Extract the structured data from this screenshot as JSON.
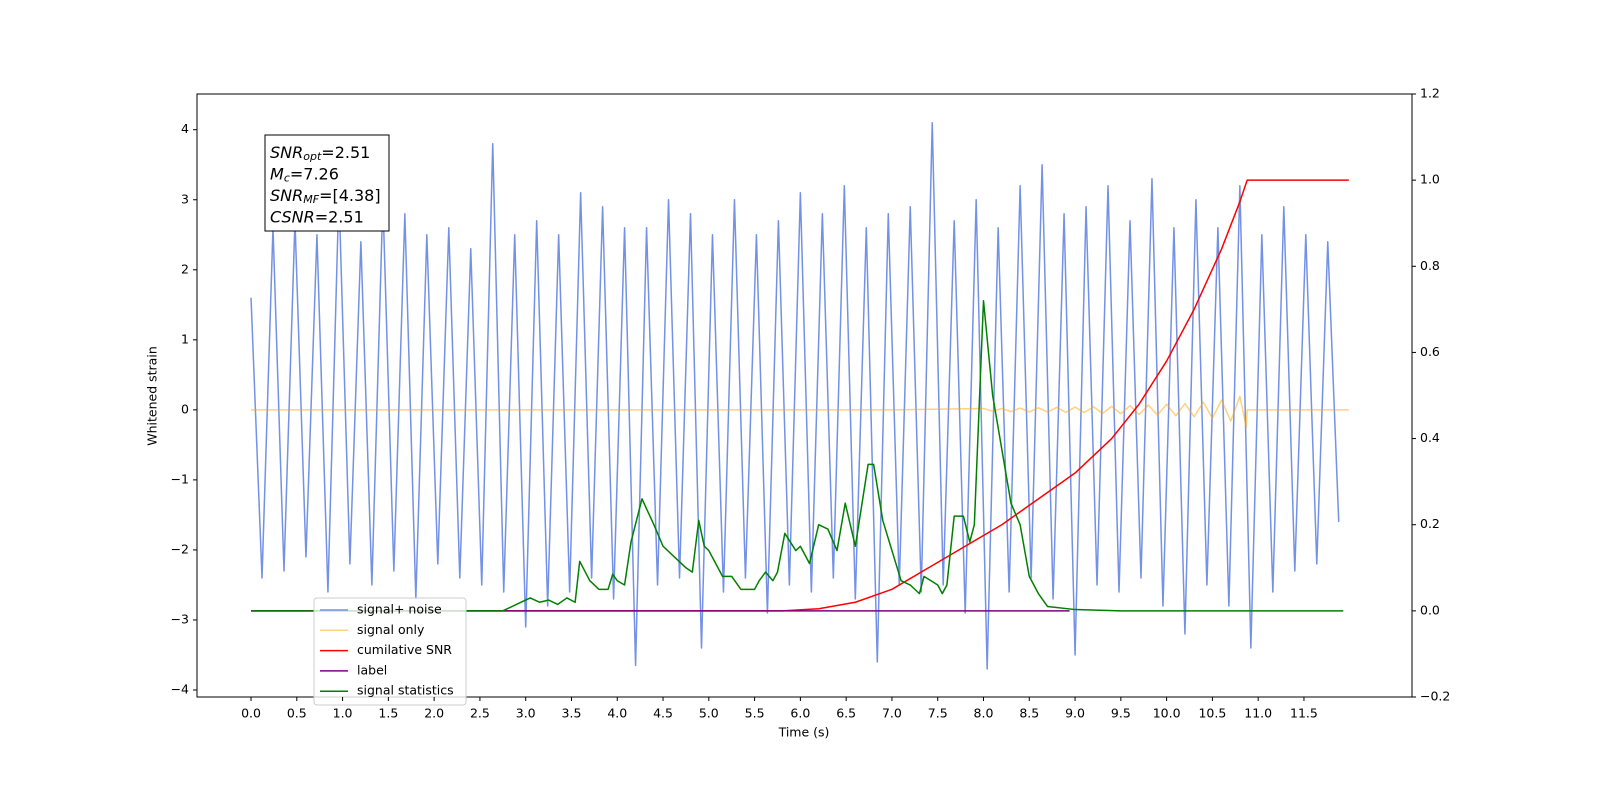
{
  "chart_data": {
    "type": "line",
    "xlabel": "Time (s)",
    "ylabel": "Whitened strain",
    "xlim": [
      -0.59,
      12.68
    ],
    "ylim": [
      -4.1,
      4.51
    ],
    "y2lim": [
      -0.2,
      1.2
    ],
    "xticks": [
      {
        "value": 0,
        "label": "0.0"
      },
      {
        "value": 0.5,
        "label": "0.5"
      },
      {
        "value": 1,
        "label": "1.0"
      },
      {
        "value": 1.5,
        "label": "1.5"
      },
      {
        "value": 2,
        "label": "2.0"
      },
      {
        "value": 2.5,
        "label": "2.5"
      },
      {
        "value": 3,
        "label": "3.0"
      },
      {
        "value": 3.5,
        "label": "3.5"
      },
      {
        "value": 4,
        "label": "4.0"
      },
      {
        "value": 4.5,
        "label": "4.5"
      },
      {
        "value": 5,
        "label": "5.0"
      },
      {
        "value": 5.5,
        "label": "5.5"
      },
      {
        "value": 6,
        "label": "6.0"
      },
      {
        "value": 6.5,
        "label": "6.5"
      },
      {
        "value": 7,
        "label": "7.0"
      },
      {
        "value": 7.5,
        "label": "7.5"
      },
      {
        "value": 8,
        "label": "8.0"
      },
      {
        "value": 8.5,
        "label": "8.5"
      },
      {
        "value": 9,
        "label": "9.0"
      },
      {
        "value": 9.5,
        "label": "9.5"
      },
      {
        "value": 10,
        "label": "10.0"
      },
      {
        "value": 10.5,
        "label": "10.5"
      },
      {
        "value": 11,
        "label": "11.0"
      },
      {
        "value": 11.5,
        "label": "11.5"
      }
    ],
    "yticks": [
      {
        "value": -4,
        "label": "−4"
      },
      {
        "value": -3,
        "label": "−3"
      },
      {
        "value": -2,
        "label": "−2"
      },
      {
        "value": -1,
        "label": "−1"
      },
      0,
      1,
      2,
      3,
      4
    ],
    "y2ticks": [
      {
        "value": -0.2,
        "label": "−0.2"
      },
      {
        "value": 0,
        "label": "0.0"
      },
      {
        "value": 0.2,
        "label": "0.2"
      },
      {
        "value": 0.4,
        "label": "0.4"
      },
      {
        "value": 0.6,
        "label": "0.6"
      },
      {
        "value": 0.8,
        "label": "0.8"
      },
      {
        "value": 1,
        "label": "1.0"
      },
      {
        "value": 1.2,
        "label": "1.2"
      }
    ],
    "grid": false,
    "legend": "lower left",
    "annotation": [
      {
        "main": "SNR",
        "sub": "opt",
        "text": "=2.51"
      },
      {
        "main": "M",
        "sub": "c",
        "text": "=7.26"
      },
      {
        "main": "SNR",
        "sub": "MF",
        "text": "=[4.38]"
      },
      {
        "main": "CSNR",
        "text": "=2.51"
      }
    ],
    "series": [
      {
        "name": "signal+ noise",
        "color": "#7391e6",
        "x": [
          0,
          0.12,
          0.24,
          0.36,
          0.48,
          0.6,
          0.72,
          0.84,
          0.96,
          1.08,
          1.2,
          1.32,
          1.44,
          1.56,
          1.68,
          1.8,
          1.92,
          2.04,
          2.16,
          2.28,
          2.4,
          2.52,
          2.64,
          2.76,
          2.88,
          3.0,
          3.12,
          3.24,
          3.36,
          3.48,
          3.6,
          3.72,
          3.84,
          3.96,
          4.08,
          4.2,
          4.32,
          4.44,
          4.56,
          4.68,
          4.8,
          4.92,
          5.04,
          5.16,
          5.28,
          5.4,
          5.52,
          5.64,
          5.76,
          5.88,
          6.0,
          6.12,
          6.24,
          6.36,
          6.48,
          6.6,
          6.72,
          6.84,
          6.96,
          7.08,
          7.2,
          7.32,
          7.44,
          7.56,
          7.68,
          7.8,
          7.92,
          8.04,
          8.16,
          8.28,
          8.4,
          8.52,
          8.64,
          8.76,
          8.88,
          9.0,
          9.12,
          9.24,
          9.36,
          9.48,
          9.6,
          9.72,
          9.84,
          9.96,
          10.08,
          10.2,
          10.32,
          10.44,
          10.56,
          10.68,
          10.8,
          10.92,
          11.04,
          11.16,
          11.28,
          11.4,
          11.52,
          11.64,
          11.76,
          11.88
        ],
        "values": [
          1.6,
          -2.4,
          2.6,
          -2.3,
          2.7,
          -2.1,
          2.5,
          -2.6,
          3.1,
          -2.2,
          2.4,
          -2.5,
          3.0,
          -2.3,
          2.8,
          -2.7,
          2.5,
          -2.2,
          2.6,
          -2.4,
          2.3,
          -2.5,
          3.8,
          -2.6,
          2.5,
          -3.1,
          2.7,
          -2.8,
          2.5,
          -2.6,
          3.1,
          -2.4,
          2.9,
          -2.7,
          2.6,
          -3.65,
          2.6,
          -2.5,
          3.0,
          -2.4,
          2.8,
          -3.4,
          2.5,
          -2.6,
          3.0,
          -2.4,
          2.5,
          -2.9,
          2.7,
          -2.5,
          3.1,
          -2.6,
          2.8,
          -2.4,
          3.2,
          -2.7,
          2.6,
          -3.6,
          2.8,
          -2.5,
          2.9,
          -2.6,
          4.1,
          -2.5,
          2.7,
          -2.9,
          3.0,
          -3.7,
          2.6,
          -2.6,
          3.2,
          -2.4,
          3.5,
          -2.7,
          2.8,
          -3.5,
          2.9,
          -2.5,
          3.2,
          -2.6,
          2.7,
          -2.4,
          3.3,
          -2.8,
          2.6,
          -3.2,
          3.0,
          -2.5,
          2.6,
          -2.8,
          3.2,
          -3.4,
          2.5,
          -2.6,
          2.9,
          -2.3,
          2.5,
          -2.2,
          2.4,
          -1.6
        ]
      },
      {
        "name": "signal only",
        "color": "#ffa500",
        "x": [
          0,
          7.0,
          8.0,
          8.1,
          8.2,
          8.3,
          8.4,
          8.5,
          8.6,
          8.7,
          8.8,
          8.9,
          9.0,
          9.1,
          9.2,
          9.3,
          9.4,
          9.5,
          9.6,
          9.7,
          9.8,
          9.9,
          10.0,
          10.1,
          10.2,
          10.3,
          10.4,
          10.5,
          10.6,
          10.7,
          10.8,
          10.87,
          10.88,
          11.99
        ],
        "values": [
          0,
          0,
          0.02,
          -0.02,
          0.02,
          -0.025,
          0.025,
          -0.03,
          0.03,
          -0.03,
          0.035,
          -0.035,
          0.04,
          -0.04,
          0.045,
          -0.05,
          0.05,
          -0.055,
          0.06,
          -0.065,
          0.07,
          -0.075,
          0.08,
          -0.085,
          0.09,
          -0.1,
          0.11,
          -0.12,
          0.14,
          -0.16,
          0.19,
          -0.25,
          0,
          0
        ]
      },
      {
        "name": "cumilative SNR",
        "color": "#ff0000",
        "axis": "y2",
        "x": [
          0,
          5.8,
          6.2,
          6.6,
          7.0,
          7.4,
          7.8,
          8.2,
          8.6,
          9.0,
          9.4,
          9.7,
          10.0,
          10.3,
          10.6,
          10.8,
          10.88,
          11.99
        ],
        "values": [
          0,
          0,
          0.005,
          0.02,
          0.05,
          0.1,
          0.15,
          0.2,
          0.26,
          0.32,
          0.4,
          0.48,
          0.58,
          0.7,
          0.84,
          0.95,
          1.0,
          1.0
        ]
      },
      {
        "name": "label",
        "color": "#800080",
        "axis": "y2",
        "x": [
          0,
          8.94
        ],
        "values": [
          0,
          0
        ]
      },
      {
        "name": "signal statistics",
        "color": "#008000",
        "axis": "y2",
        "x": [
          0,
          2.75,
          2.95,
          3.05,
          3.15,
          3.25,
          3.35,
          3.45,
          3.54,
          3.59,
          3.7,
          3.8,
          3.9,
          3.95,
          4.0,
          4.08,
          4.15,
          4.27,
          4.4,
          4.5,
          4.65,
          4.75,
          4.82,
          4.89,
          4.95,
          5.0,
          5.15,
          5.25,
          5.35,
          5.5,
          5.55,
          5.62,
          5.7,
          5.75,
          5.83,
          5.95,
          6.0,
          6.1,
          6.2,
          6.3,
          6.4,
          6.49,
          6.6,
          6.74,
          6.8,
          6.9,
          7.0,
          7.1,
          7.2,
          7.3,
          7.35,
          7.5,
          7.55,
          7.6,
          7.68,
          7.78,
          7.85,
          7.9,
          8.0,
          8.1,
          8.3,
          8.4,
          8.5,
          8.6,
          8.7,
          9.0,
          9.5,
          11.93
        ],
        "values": [
          0,
          0,
          0.02,
          0.03,
          0.02,
          0.025,
          0.015,
          0.03,
          0.02,
          0.115,
          0.07,
          0.05,
          0.05,
          0.085,
          0.07,
          0.06,
          0.16,
          0.26,
          0.2,
          0.15,
          0.12,
          0.1,
          0.09,
          0.21,
          0.15,
          0.14,
          0.08,
          0.08,
          0.05,
          0.05,
          0.07,
          0.09,
          0.07,
          0.09,
          0.18,
          0.14,
          0.15,
          0.11,
          0.2,
          0.19,
          0.14,
          0.25,
          0.15,
          0.34,
          0.34,
          0.21,
          0.14,
          0.07,
          0.06,
          0.04,
          0.08,
          0.06,
          0.04,
          0.06,
          0.22,
          0.22,
          0.16,
          0.2,
          0.72,
          0.5,
          0.25,
          0.2,
          0.08,
          0.04,
          0.01,
          0.003,
          0,
          0
        ]
      }
    ]
  }
}
